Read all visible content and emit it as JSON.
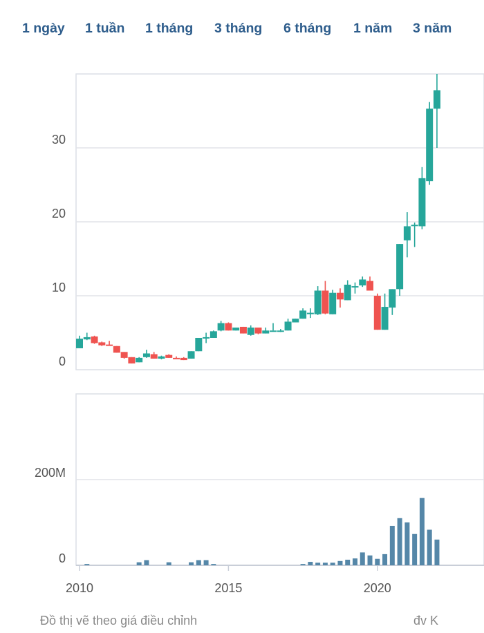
{
  "tabs": [
    "1 ngày",
    "1 tuần",
    "1 tháng",
    "3 tháng",
    "6 tháng",
    "1 năm",
    "3 năm"
  ],
  "footer": {
    "note": "Đồ thị vẽ theo giá điều chỉnh",
    "unit": "đv K"
  },
  "colors": {
    "up": "#26a69a",
    "down": "#ef5350",
    "volume": "#5587a8",
    "tab": "#2e5d8c"
  },
  "chart_data": [
    {
      "type": "candlestick",
      "title": "",
      "interval": "quarter",
      "start": "2010Q1",
      "ylim": [
        0,
        40
      ],
      "yticks": [
        0,
        10,
        20,
        30
      ],
      "ytick_labels": [
        "0",
        "10",
        "20",
        "30"
      ],
      "grid": true,
      "ohlc": [
        [
          2.9,
          4.6,
          2.9,
          4.2
        ],
        [
          4.1,
          5.0,
          4.0,
          4.4
        ],
        [
          4.5,
          4.6,
          3.5,
          3.6
        ],
        [
          3.7,
          3.8,
          3.2,
          3.3
        ],
        [
          3.4,
          3.9,
          3.3,
          3.3
        ],
        [
          3.2,
          3.2,
          2.3,
          2.3
        ],
        [
          2.4,
          2.4,
          1.5,
          1.6
        ],
        [
          1.7,
          1.7,
          0.85,
          0.85
        ],
        [
          1.0,
          1.7,
          1.0,
          1.6
        ],
        [
          1.7,
          2.7,
          1.6,
          2.2
        ],
        [
          2.1,
          2.4,
          1.5,
          1.5
        ],
        [
          1.5,
          1.9,
          1.4,
          1.8
        ],
        [
          2.0,
          2.1,
          1.6,
          1.6
        ],
        [
          1.6,
          1.8,
          1.5,
          1.5
        ],
        [
          1.6,
          1.7,
          1.3,
          1.3
        ],
        [
          1.5,
          2.5,
          1.5,
          2.5
        ],
        [
          2.5,
          4.3,
          2.5,
          4.3
        ],
        [
          4.3,
          5.0,
          3.6,
          4.4
        ],
        [
          4.3,
          5.3,
          4.3,
          5.2
        ],
        [
          5.3,
          6.6,
          5.2,
          6.3
        ],
        [
          6.3,
          6.4,
          5.3,
          5.3
        ],
        [
          5.3,
          5.7,
          5.3,
          5.7
        ],
        [
          5.8,
          5.8,
          4.9,
          4.9
        ],
        [
          4.7,
          6.0,
          4.6,
          5.7
        ],
        [
          5.7,
          5.7,
          4.8,
          4.9
        ],
        [
          4.9,
          5.7,
          4.9,
          5.3
        ],
        [
          5.3,
          6.3,
          5.3,
          5.3
        ],
        [
          5.3,
          5.5,
          5.1,
          5.3
        ],
        [
          5.3,
          6.9,
          5.3,
          6.5
        ],
        [
          6.4,
          6.9,
          6.4,
          6.9
        ],
        [
          6.9,
          8.3,
          6.9,
          8.0
        ],
        [
          7.6,
          8.3,
          7.0,
          7.7
        ],
        [
          7.5,
          11.3,
          7.4,
          10.7
        ],
        [
          10.7,
          12.0,
          7.5,
          7.6
        ],
        [
          7.5,
          10.8,
          7.5,
          10.4
        ],
        [
          10.4,
          11.0,
          8.4,
          9.5
        ],
        [
          9.4,
          12.1,
          9.4,
          11.5
        ],
        [
          11.2,
          11.8,
          10.3,
          11.3
        ],
        [
          11.4,
          12.6,
          11.2,
          12.2
        ],
        [
          12.0,
          12.6,
          10.7,
          10.7
        ],
        [
          10.0,
          10.3,
          5.4,
          5.4
        ],
        [
          5.4,
          10.3,
          5.4,
          8.5
        ],
        [
          8.4,
          10.9,
          7.4,
          10.9
        ],
        [
          10.9,
          17.0,
          10.0,
          17.0
        ],
        [
          17.5,
          21.3,
          15.2,
          19.4
        ],
        [
          19.5,
          19.9,
          16.6,
          19.6
        ],
        [
          19.4,
          27.4,
          19.0,
          25.9
        ],
        [
          25.5,
          36.2,
          25.0,
          35.3
        ],
        [
          35.3,
          40.0,
          30.0,
          37.8
        ]
      ]
    },
    {
      "type": "bar",
      "series_name": "volume",
      "interval": "quarter",
      "start": "2010Q1",
      "ylim": [
        0,
        400
      ],
      "yticks": [
        0,
        200
      ],
      "ytick_labels": [
        "0",
        "200M"
      ],
      "xticks": [
        2010,
        2015,
        2020
      ],
      "xtick_labels": [
        "2010",
        "2015",
        "2020"
      ],
      "values_millions": [
        0,
        3,
        0,
        0,
        0,
        0,
        0,
        0,
        7,
        12,
        0,
        0,
        7,
        0,
        0,
        7,
        12,
        12,
        3,
        0,
        0,
        0,
        0,
        0,
        0,
        0,
        0,
        0,
        0,
        0,
        3,
        8,
        6,
        6,
        6,
        10,
        13,
        16,
        30,
        23,
        15,
        26,
        92,
        110,
        100,
        73,
        157,
        83,
        60
      ]
    }
  ]
}
